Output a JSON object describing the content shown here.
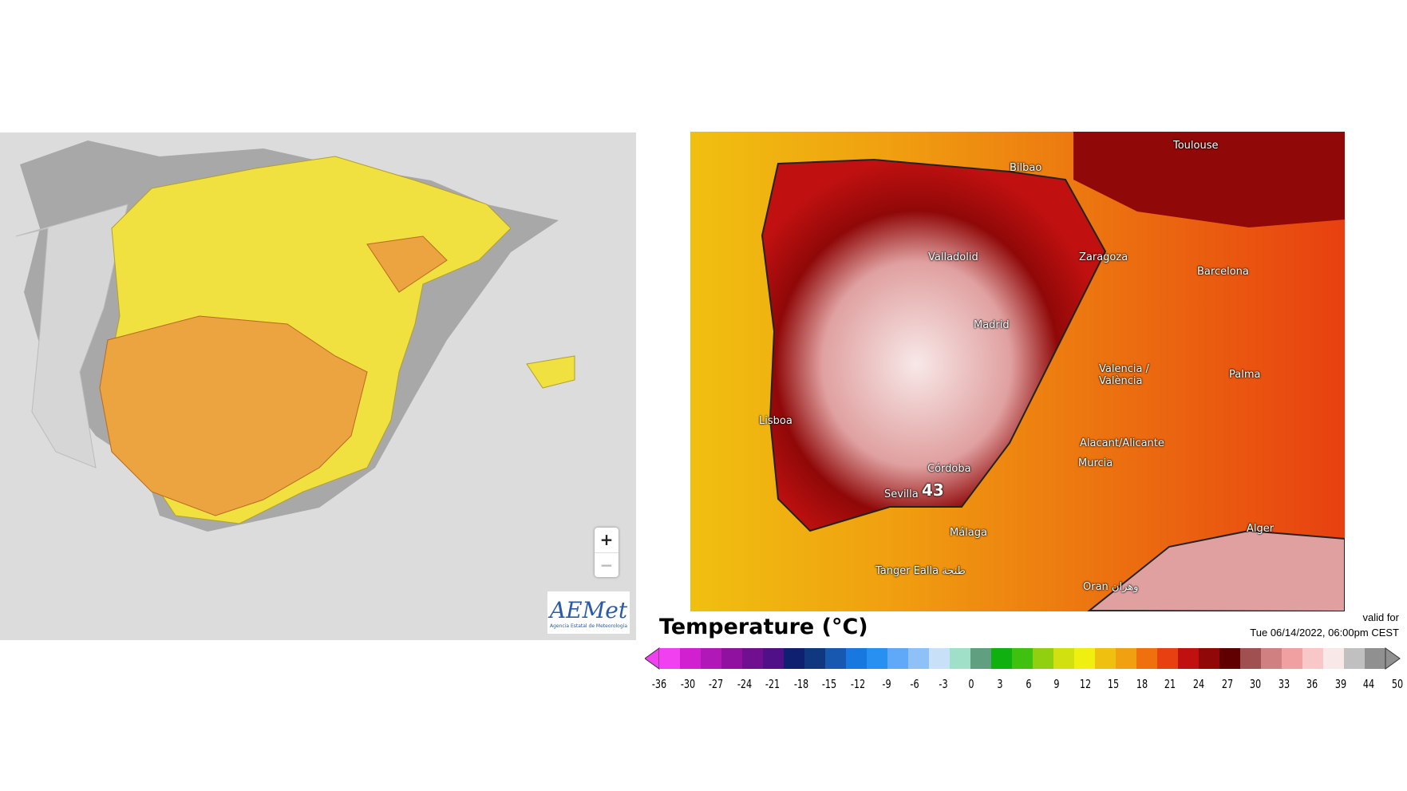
{
  "aemet_map": {
    "zoom_in": "+",
    "zoom_out": "−",
    "logo": "AEMet",
    "logo_subtitle": "Agencia Estatal de Meteorología",
    "colors": {
      "sea": "#dcdcdc",
      "yellow_warning": "#f0e040",
      "orange_warning": "#eba440",
      "other_land": "#a8a8a8"
    }
  },
  "temp_map": {
    "cities": [
      {
        "name": "Toulouse"
      },
      {
        "name": "Bilbao"
      },
      {
        "name": "Valladolid"
      },
      {
        "name": "Zaragoza"
      },
      {
        "name": "Barcelona"
      },
      {
        "name": "Madrid"
      },
      {
        "name": "Valencia / València"
      },
      {
        "name": "Palma"
      },
      {
        "name": "Lisboa"
      },
      {
        "name": "Alacant/Alicante"
      },
      {
        "name": "Murcia"
      },
      {
        "name": "Córdoba"
      },
      {
        "name": "Sevilla"
      },
      {
        "name": "Málaga"
      },
      {
        "name": "Alger"
      },
      {
        "name": "Tanger Ealla طنجة"
      },
      {
        "name": "Oran وهران"
      }
    ],
    "max_label": "43"
  },
  "legend": {
    "title": "Temperature (°C)",
    "valid_label": "valid for",
    "valid_time": "Tue 06/14/2022, 06:00pm CEST",
    "ticks": [
      "-36",
      "-30",
      "-27",
      "-24",
      "-21",
      "-18",
      "-15",
      "-12",
      "-9",
      "-6",
      "-3",
      "0",
      "3",
      "6",
      "9",
      "12",
      "15",
      "18",
      "21",
      "24",
      "27",
      "30",
      "33",
      "36",
      "39",
      "44",
      "50"
    ],
    "colors": [
      "#f040f0",
      "#d020d0",
      "#b018b8",
      "#9010a0",
      "#701090",
      "#501088",
      "#102070",
      "#103880",
      "#1858b0",
      "#1878e0",
      "#2890f0",
      "#60a8f8",
      "#90c0f8",
      "#c8e0f8",
      "#a0e0c8",
      "#60a080",
      "#10b010",
      "#40c010",
      "#90d010",
      "#d0e010",
      "#f0f010",
      "#f0c010",
      "#f0a010",
      "#f07010",
      "#e84010",
      "#c01010",
      "#900808",
      "#600000",
      "#a05050",
      "#d08080",
      "#f0a0a0",
      "#f8c8c8",
      "#f8e8e8",
      "#c0c0c0",
      "#909090"
    ]
  }
}
